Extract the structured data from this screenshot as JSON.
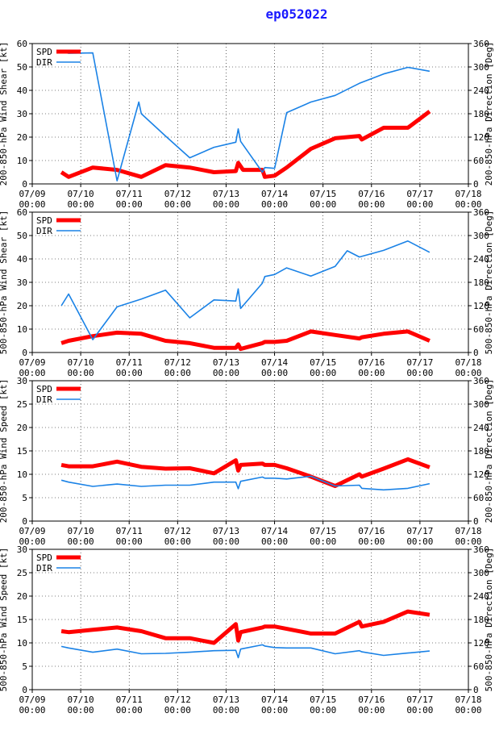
{
  "title": "ep052022",
  "colors": {
    "spd": "#ff0000",
    "dir": "#1a82e6",
    "title": "#1a1aff"
  },
  "x_ticks": [
    {
      "date": "07/09",
      "time": "00:00"
    },
    {
      "date": "07/10",
      "time": "00:00"
    },
    {
      "date": "07/11",
      "time": "00:00"
    },
    {
      "date": "07/12",
      "time": "00:00"
    },
    {
      "date": "07/13",
      "time": "00:00"
    },
    {
      "date": "07/14",
      "time": "00:00"
    },
    {
      "date": "07/15",
      "time": "00:00"
    },
    {
      "date": "07/16",
      "time": "00:00"
    },
    {
      "date": "07/17",
      "time": "00:00"
    },
    {
      "date": "07/18",
      "time": "00:00"
    }
  ],
  "chart_data": [
    {
      "type": "line",
      "ylabel_left": "200-850-hPa Wind Shear [kt]",
      "ylabel_right": "200-850-hPa Direction [Deg]",
      "ylim_left": [
        0,
        60
      ],
      "yticks_left": [
        0,
        10,
        20,
        30,
        40,
        50,
        60
      ],
      "ylim_right": [
        0,
        360
      ],
      "yticks_right": [
        0,
        60,
        120,
        180,
        240,
        300,
        360
      ],
      "xlim_days": [
        0,
        9
      ],
      "legend": [
        "SPD",
        "DIR"
      ],
      "series": [
        {
          "name": "SPD",
          "axis": "left",
          "x": [
            0.6,
            0.75,
            1.25,
            1.75,
            2.25,
            2.75,
            3.25,
            3.75,
            4.2,
            4.25,
            4.35,
            4.75,
            4.8,
            5.0,
            5.25,
            5.75,
            6.25,
            6.75,
            6.8,
            7.25,
            7.75,
            8.2
          ],
          "y": [
            5,
            3,
            7,
            6,
            3,
            8,
            7,
            5,
            5.5,
            9,
            6,
            6,
            3,
            3.5,
            7,
            15,
            19.5,
            20.5,
            19,
            24,
            24,
            31
          ]
        },
        {
          "name": "DIR",
          "axis": "right",
          "x": [
            0.6,
            0.75,
            1.25,
            1.75,
            2.2,
            2.25,
            2.75,
            3.25,
            3.75,
            4.2,
            4.25,
            4.3,
            4.75,
            4.8,
            5.0,
            5.25,
            5.75,
            6.25,
            6.75,
            7.25,
            7.75,
            8.2
          ],
          "y": [
            340,
            335,
            336,
            8,
            210,
            180,
            123,
            67,
            94,
            107,
            141,
            109,
            30,
            42,
            40,
            183,
            210,
            227,
            258,
            282,
            299,
            289
          ]
        }
      ]
    },
    {
      "type": "line",
      "ylabel_left": "500-850-hPa Wind Shear [kt]",
      "ylabel_right": "500-850-hPa Direction [Deg]",
      "ylim_left": [
        0,
        60
      ],
      "yticks_left": [
        0,
        10,
        20,
        30,
        40,
        50,
        60
      ],
      "ylim_right": [
        0,
        360
      ],
      "yticks_right": [
        0,
        60,
        120,
        180,
        240,
        300,
        360
      ],
      "xlim_days": [
        0,
        9
      ],
      "legend": [
        "SPD",
        "DIR"
      ],
      "series": [
        {
          "name": "SPD",
          "axis": "left",
          "x": [
            0.6,
            0.75,
            1.25,
            1.75,
            2.25,
            2.75,
            3.25,
            3.75,
            4.2,
            4.25,
            4.3,
            4.75,
            4.8,
            5.0,
            5.25,
            5.75,
            6.25,
            6.75,
            6.8,
            7.25,
            7.75,
            8.2
          ],
          "y": [
            4,
            5,
            7,
            8.5,
            8,
            5,
            4,
            2,
            2,
            3.5,
            1.5,
            4,
            4.5,
            4.5,
            5,
            9,
            7.5,
            6,
            6.5,
            8,
            9,
            5
          ]
        },
        {
          "name": "DIR",
          "axis": "right",
          "x": [
            0.6,
            0.75,
            1.25,
            1.75,
            2.25,
            2.75,
            3.25,
            3.75,
            4.2,
            4.25,
            4.3,
            4.75,
            4.8,
            5.0,
            5.25,
            5.75,
            6.25,
            6.5,
            6.75,
            7.25,
            7.75,
            8.2
          ],
          "y": [
            120,
            150,
            33,
            117,
            137,
            160,
            89,
            135,
            132,
            163,
            113,
            178,
            195,
            200,
            217,
            196,
            221,
            261,
            245,
            262,
            286,
            257
          ]
        }
      ]
    },
    {
      "type": "line",
      "ylabel_left": "200-850-hPa Wind Speed [kt]",
      "ylabel_right": "200-850-hPa Direction [Deg]",
      "ylim_left": [
        0,
        30
      ],
      "yticks_left": [
        0,
        5,
        10,
        15,
        20,
        25,
        30
      ],
      "ylim_right": [
        0,
        360
      ],
      "yticks_right": [
        0,
        60,
        120,
        180,
        240,
        300,
        360
      ],
      "xlim_days": [
        0,
        9
      ],
      "legend": [
        "SPD",
        "DIR"
      ],
      "series": [
        {
          "name": "SPD",
          "axis": "left",
          "x": [
            0.6,
            0.75,
            1.25,
            1.75,
            2.25,
            2.75,
            3.25,
            3.75,
            4.2,
            4.25,
            4.3,
            4.75,
            4.8,
            5.0,
            5.25,
            5.75,
            6.25,
            6.75,
            6.8,
            7.25,
            7.75,
            8.2
          ],
          "y": [
            12,
            11.7,
            11.7,
            12.7,
            11.6,
            11.2,
            11.3,
            10.2,
            13,
            10.8,
            12,
            12.3,
            12,
            12,
            11.3,
            9.5,
            7.5,
            10,
            9.5,
            11.2,
            13.2,
            11.5
          ]
        },
        {
          "name": "DIR",
          "axis": "right",
          "x": [
            0.6,
            0.75,
            1.25,
            1.75,
            2.25,
            2.75,
            3.25,
            3.75,
            4.2,
            4.25,
            4.3,
            4.75,
            4.8,
            5.0,
            5.25,
            5.75,
            6.25,
            6.75,
            6.8,
            7.25,
            7.75,
            8.2
          ],
          "y": [
            105,
            100,
            89,
            95,
            89,
            92,
            92,
            100,
            100,
            83,
            102,
            113,
            110,
            110,
            108,
            115,
            90,
            92,
            84,
            80,
            84,
            96
          ]
        }
      ]
    },
    {
      "type": "line",
      "ylabel_left": "500-850-hPa Wind Speed [kt]",
      "ylabel_right": "500-850-hPa Direction [Deg]",
      "ylim_left": [
        0,
        30
      ],
      "yticks_left": [
        0,
        5,
        10,
        15,
        20,
        25,
        30
      ],
      "ylim_right": [
        0,
        360
      ],
      "yticks_right": [
        0,
        60,
        120,
        180,
        240,
        300,
        360
      ],
      "xlim_days": [
        0,
        9
      ],
      "legend": [
        "SPD",
        "DIR"
      ],
      "series": [
        {
          "name": "SPD",
          "axis": "left",
          "x": [
            0.6,
            0.75,
            1.25,
            1.75,
            2.25,
            2.75,
            3.25,
            3.75,
            4.2,
            4.25,
            4.3,
            4.75,
            4.8,
            5.0,
            5.25,
            5.75,
            6.25,
            6.75,
            6.8,
            7.25,
            7.75,
            8.2
          ],
          "y": [
            12.5,
            12.3,
            12.8,
            13.3,
            12.5,
            11,
            11,
            10,
            14,
            10.5,
            12.3,
            13.3,
            13.5,
            13.5,
            13,
            12,
            12,
            14.5,
            13.5,
            14.5,
            16.7,
            16
          ]
        },
        {
          "name": "DIR",
          "axis": "right",
          "x": [
            0.6,
            0.75,
            1.25,
            1.75,
            2.25,
            2.75,
            3.25,
            3.75,
            4.2,
            4.25,
            4.3,
            4.75,
            4.8,
            5.0,
            5.25,
            5.75,
            6.25,
            6.75,
            6.8,
            7.25,
            7.75,
            8.2
          ],
          "y": [
            111,
            107,
            96,
            104,
            92,
            93,
            96,
            100,
            101,
            82,
            104,
            115,
            112,
            108,
            107,
            107,
            92,
            100,
            97,
            88,
            94,
            99
          ]
        }
      ]
    }
  ]
}
